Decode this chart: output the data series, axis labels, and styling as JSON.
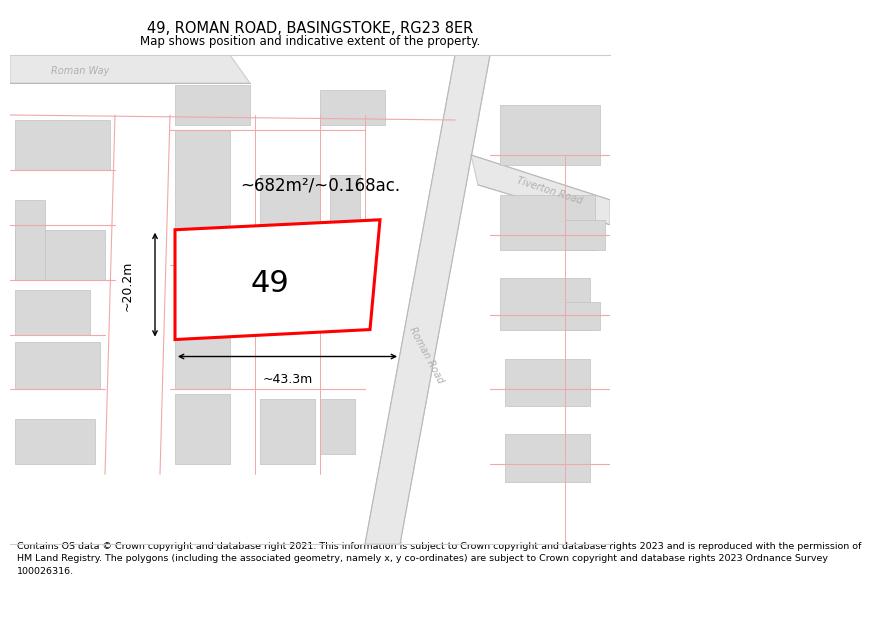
{
  "title": "49, ROMAN ROAD, BASINGSTOKE, RG23 8ER",
  "subtitle": "Map shows position and indicative extent of the property.",
  "footer": "Contains OS data © Crown copyright and database right 2021. This information is subject to Crown copyright and database rights 2023 and is reproduced with the permission of\nHM Land Registry. The polygons (including the associated geometry, namely x, y co-ordinates) are subject to Crown copyright and database rights 2023 Ordnance Survey\n100026316.",
  "map_bg": "#ffffff",
  "road_fill": "#e8e8e8",
  "road_edge": "#cccccc",
  "road_fill2": "#f0e8e8",
  "road_edge2": "#ddc8c8",
  "building_fill": "#d8d8d8",
  "building_edge": "#c0c0c0",
  "pink_line": "#f0a8a8",
  "plot_fill": "#ffffff",
  "plot_edge": "#ff0000",
  "gray_label": "#b0b0b0",
  "plot_label": "49",
  "dim_area": "~682m²/~0.168ac.",
  "dim_width": "~43.3m",
  "dim_height": "~20.2m",
  "title_fontsize": 10.5,
  "subtitle_fontsize": 8.5,
  "footer_fontsize": 6.8
}
